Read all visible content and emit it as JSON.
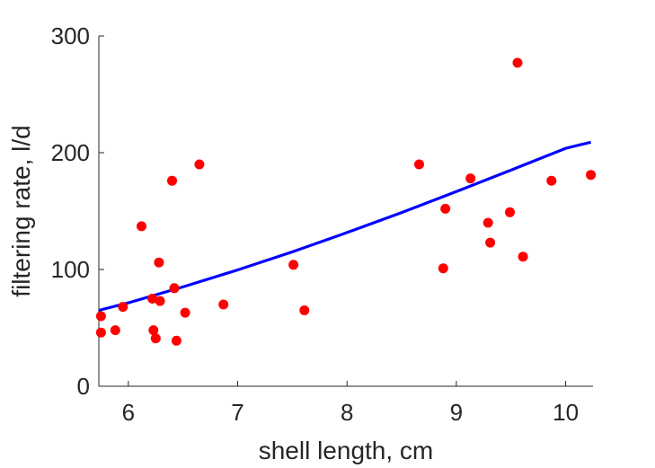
{
  "chart_data": {
    "type": "scatter",
    "xlabel": "shell length, cm",
    "ylabel": "filtering rate, l/d",
    "xlim": [
      5.73,
      10.25
    ],
    "ylim": [
      0,
      300
    ],
    "xticks": [
      6,
      7,
      8,
      9,
      10
    ],
    "yticks": [
      0,
      100,
      200,
      300
    ],
    "grid": false,
    "series": [
      {
        "kind": "scatter",
        "color": "#ff0000",
        "points": [
          {
            "x": 5.75,
            "y": 60
          },
          {
            "x": 5.75,
            "y": 46
          },
          {
            "x": 5.88,
            "y": 48
          },
          {
            "x": 5.95,
            "y": 68
          },
          {
            "x": 6.12,
            "y": 137
          },
          {
            "x": 6.22,
            "y": 75
          },
          {
            "x": 6.23,
            "y": 48
          },
          {
            "x": 6.25,
            "y": 41
          },
          {
            "x": 6.28,
            "y": 106
          },
          {
            "x": 6.29,
            "y": 73
          },
          {
            "x": 6.4,
            "y": 176
          },
          {
            "x": 6.42,
            "y": 84
          },
          {
            "x": 6.44,
            "y": 39
          },
          {
            "x": 6.52,
            "y": 63
          },
          {
            "x": 6.65,
            "y": 190
          },
          {
            "x": 6.87,
            "y": 70
          },
          {
            "x": 7.51,
            "y": 104
          },
          {
            "x": 7.61,
            "y": 65
          },
          {
            "x": 8.66,
            "y": 190
          },
          {
            "x": 8.88,
            "y": 101
          },
          {
            "x": 8.9,
            "y": 152
          },
          {
            "x": 9.13,
            "y": 178
          },
          {
            "x": 9.29,
            "y": 140
          },
          {
            "x": 9.31,
            "y": 123
          },
          {
            "x": 9.49,
            "y": 149
          },
          {
            "x": 9.56,
            "y": 277
          },
          {
            "x": 9.61,
            "y": 111
          },
          {
            "x": 9.87,
            "y": 176
          },
          {
            "x": 10.23,
            "y": 181
          }
        ]
      },
      {
        "kind": "line",
        "color": "#0000ff",
        "x": [
          5.73,
          6.0,
          6.5,
          7.0,
          7.5,
          8.0,
          8.5,
          9.0,
          9.5,
          10.0,
          10.23
        ],
        "y": [
          65,
          71.5,
          85.1,
          99.6,
          115.1,
          131.6,
          148.8,
          166.7,
          185.1,
          203.8,
          209
        ]
      }
    ]
  }
}
